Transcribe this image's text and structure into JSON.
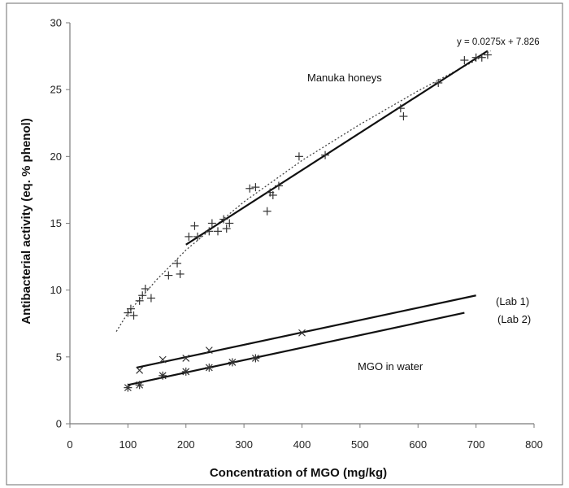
{
  "chart_data": {
    "type": "scatter",
    "xlabel": "Concentration of MGO (mg/kg)",
    "ylabel": "Antibacterial activity (eq. % phenol)",
    "xlim": [
      0,
      800
    ],
    "ylim": [
      0,
      30
    ],
    "xticks": [
      0,
      100,
      200,
      300,
      400,
      500,
      600,
      700,
      800
    ],
    "yticks": [
      0,
      5,
      10,
      15,
      20,
      25,
      30
    ],
    "grid": false,
    "annotations": {
      "manuka": "Manuka honeys",
      "equation": "y = 0.0275x + 7.826",
      "lab1": "(Lab 1)",
      "lab2": "(Lab 2)",
      "water": "MGO in water"
    },
    "series": [
      {
        "marker": "plus",
        "points": [
          [
            100,
            8.3
          ],
          [
            105,
            8.6
          ],
          [
            110,
            8.1
          ],
          [
            120,
            9.2
          ],
          [
            125,
            9.6
          ],
          [
            130,
            10.1
          ],
          [
            140,
            9.4
          ],
          [
            170,
            11.1
          ],
          [
            185,
            12.0
          ],
          [
            190,
            11.2
          ],
          [
            205,
            14.0
          ],
          [
            215,
            14.8
          ],
          [
            220,
            14.0
          ],
          [
            240,
            14.4
          ],
          [
            245,
            15.0
          ],
          [
            255,
            14.4
          ],
          [
            265,
            15.3
          ],
          [
            270,
            14.6
          ],
          [
            275,
            15.0
          ],
          [
            310,
            17.6
          ],
          [
            320,
            17.7
          ],
          [
            340,
            15.9
          ],
          [
            345,
            17.3
          ],
          [
            350,
            17.1
          ],
          [
            360,
            17.8
          ],
          [
            395,
            20.0
          ],
          [
            440,
            20.1
          ],
          [
            570,
            23.6
          ],
          [
            575,
            23.0
          ],
          [
            635,
            25.5
          ],
          [
            680,
            27.2
          ],
          [
            700,
            27.4
          ],
          [
            710,
            27.4
          ],
          [
            720,
            27.6
          ]
        ],
        "linear_fit": {
          "x": [
            200,
            720
          ],
          "y": [
            13.4,
            27.9
          ]
        },
        "curve_fit": {
          "x": [
            80,
            100,
            150,
            200,
            300,
            400,
            500,
            600,
            700,
            725
          ],
          "y": [
            6.9,
            8.3,
            10.8,
            13.0,
            16.6,
            19.7,
            22.4,
            24.9,
            27.2,
            27.9
          ]
        }
      },
      {
        "marker": "x",
        "points": [
          [
            120,
            4.0
          ],
          [
            160,
            4.8
          ],
          [
            200,
            4.9
          ],
          [
            240,
            5.5
          ],
          [
            400,
            6.8
          ]
        ],
        "linear_fit": {
          "x": [
            115,
            700
          ],
          "y": [
            4.2,
            9.6
          ]
        }
      },
      {
        "marker": "asterisk",
        "points": [
          [
            100,
            2.7
          ],
          [
            120,
            2.9
          ],
          [
            160,
            3.6
          ],
          [
            200,
            3.9
          ],
          [
            240,
            4.2
          ],
          [
            280,
            4.6
          ],
          [
            320,
            4.9
          ]
        ],
        "linear_fit": {
          "x": [
            100,
            680
          ],
          "y": [
            2.9,
            8.3
          ]
        }
      }
    ]
  }
}
